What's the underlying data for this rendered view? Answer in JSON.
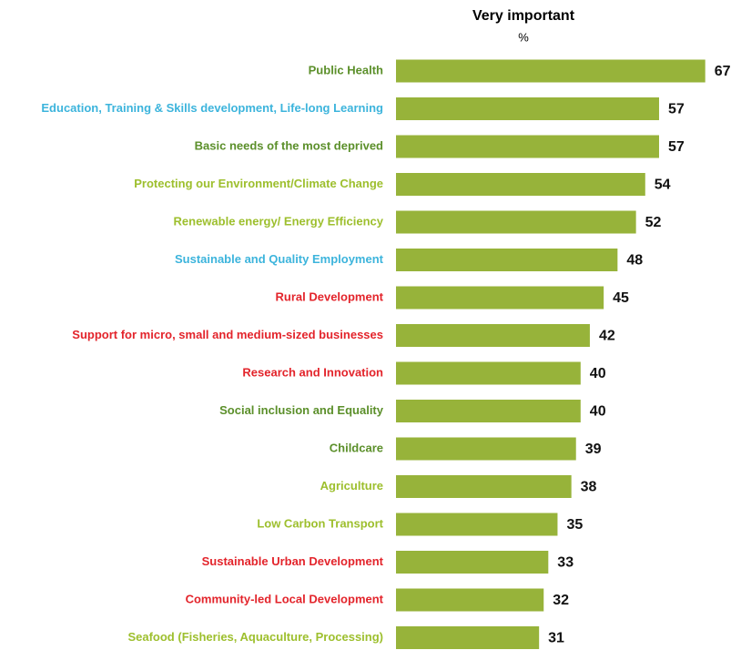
{
  "chart_data": {
    "type": "hbar",
    "title": "Very important",
    "subtitle": "%",
    "categories": [
      "Public Health",
      "Education, Training & Skills development, Life-long Learning",
      "Basic needs of the most deprived",
      "Protecting our Environment/Climate Change",
      "Renewable energy/ Energy Efficiency",
      "Sustainable and Quality Employment",
      "Rural Development",
      "Support for micro, small and medium-sized businesses",
      "Research and Innovation",
      "Social inclusion and Equality",
      "Childcare",
      "Agriculture",
      "Low Carbon Transport",
      "Sustainable Urban Development",
      "Community-led Local Development",
      "Seafood (Fisheries, Aquaculture, Processing)"
    ],
    "values": [
      67,
      57,
      57,
      54,
      52,
      48,
      45,
      42,
      40,
      40,
      39,
      38,
      35,
      33,
      32,
      31
    ],
    "color": "#97b33a",
    "category_colors": [
      "#5b8f2a",
      "#3cb4dc",
      "#5b8f2a",
      "#9dbf2d",
      "#9dbf2d",
      "#3cb4dc",
      "#e3242b",
      "#e3242b",
      "#e3242b",
      "#5b8f2a",
      "#5b8f2a",
      "#9dbf2d",
      "#9dbf2d",
      "#e3242b",
      "#e3242b",
      "#9dbf2d"
    ]
  }
}
